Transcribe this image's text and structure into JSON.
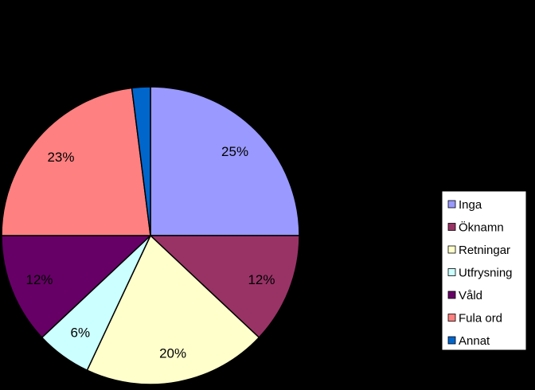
{
  "chart_data": {
    "type": "pie",
    "title": "",
    "categories": [
      "Inga",
      "Öknamn",
      "Retningar",
      "Utfrysning",
      "Våld",
      "Fula ord",
      "Annat"
    ],
    "values": [
      25,
      12,
      20,
      6,
      12,
      23,
      2
    ],
    "data_labels": [
      "25%",
      "12%",
      "20%",
      "6%",
      "12%",
      "23%",
      ""
    ],
    "colors": [
      "#9999FF",
      "#993366",
      "#FFFFCC",
      "#CCFFFF",
      "#660066",
      "#FF8080",
      "#0066CC"
    ],
    "legend_position": "right",
    "background": "#000000"
  }
}
